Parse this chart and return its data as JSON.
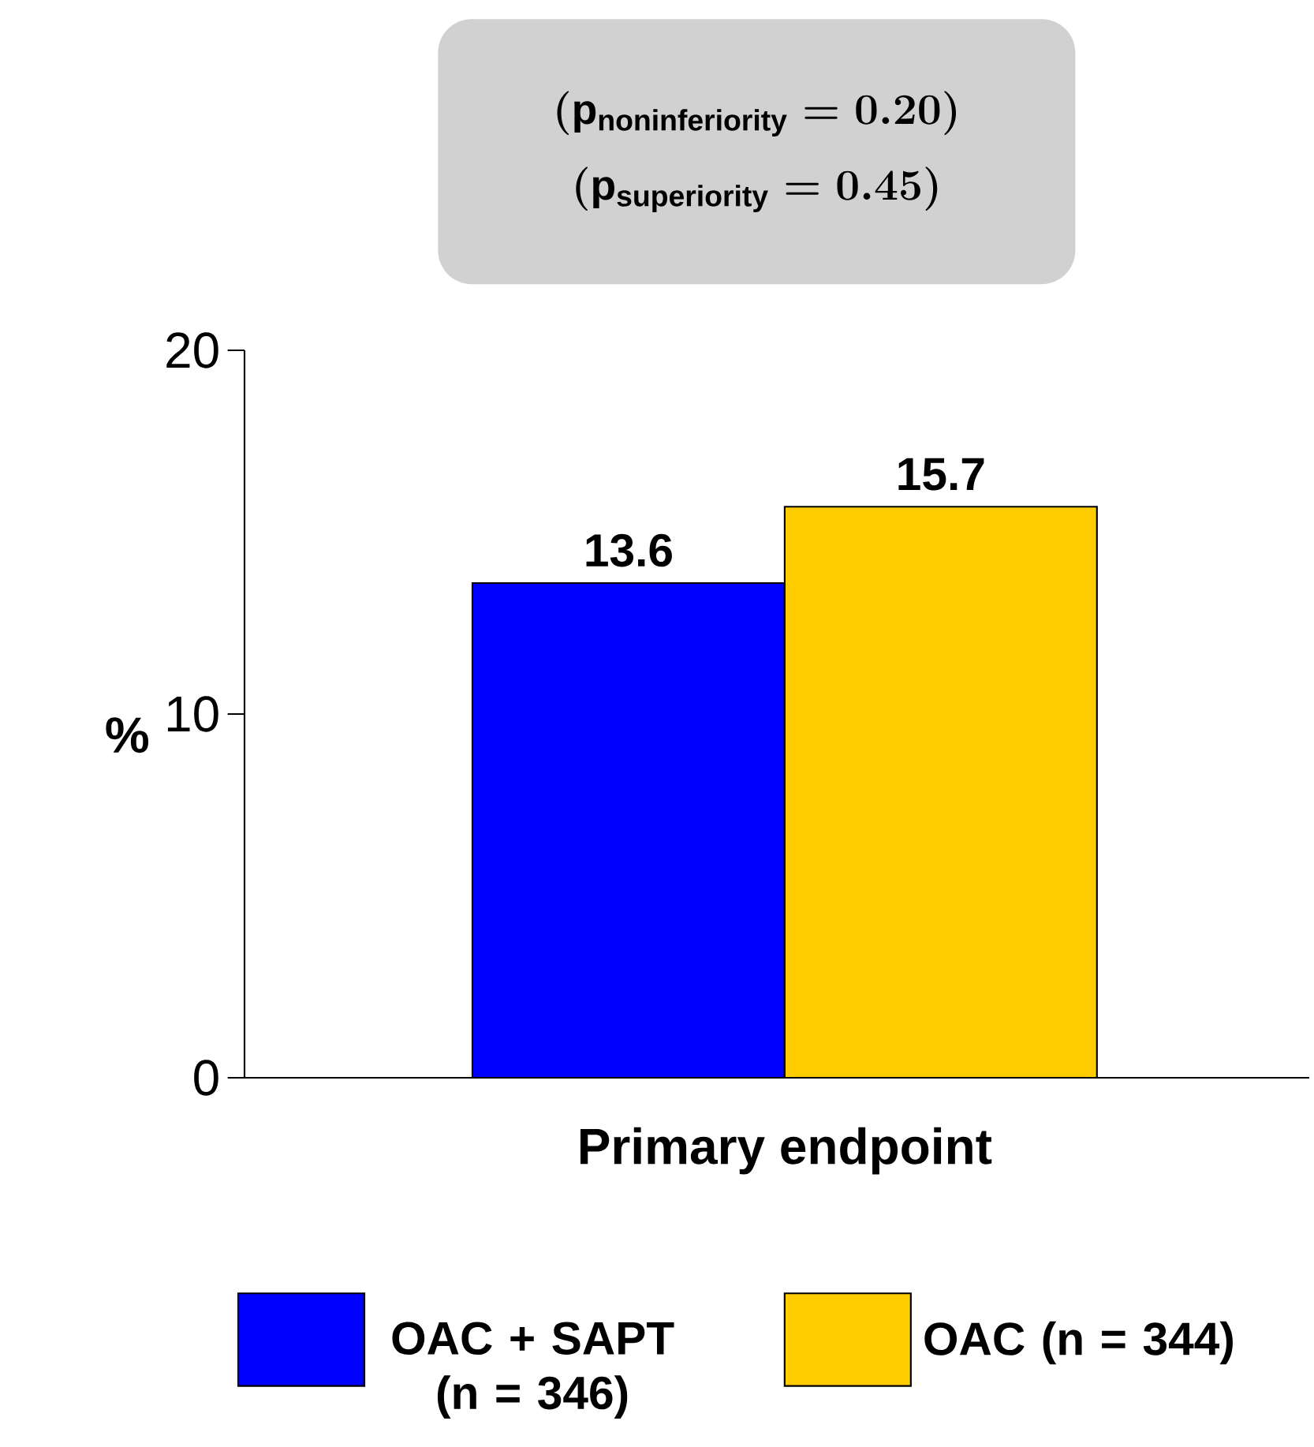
{
  "chart_data": {
    "type": "bar",
    "categories": [
      "Primary endpoint"
    ],
    "ylabel": "%",
    "ylim": [
      0,
      20
    ],
    "yticks": [
      0,
      10,
      20
    ],
    "data_labels": true,
    "legend": "bottom",
    "grid": false,
    "annotations": [
      "(\\mathrm{p}_{\\mathrm{noninferiority}} = 0.20)",
      "(\\mathrm{p}_{\\mathrm{superiority}} = 0.45)"
    ],
    "series": [
      {
        "name": "OAC + SAPT (n = 346)",
        "color": "#0000ff",
        "values": [
          13.6
        ]
      },
      {
        "name": "OAC (n = 344)",
        "color": "#ffcc00",
        "values": [
          15.7
        ]
      }
    ]
  }
}
